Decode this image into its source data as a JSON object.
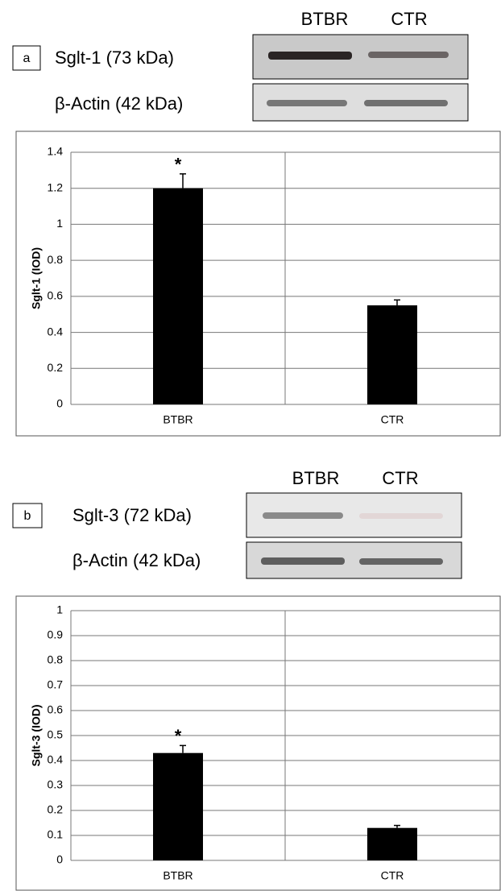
{
  "blots": [
    {
      "panel": "a",
      "lanes": [
        "BTBR",
        "CTR"
      ],
      "rows": [
        "Sglt-1 (73 kDa)",
        "β-Actin (42 kDa)"
      ]
    },
    {
      "panel": "b",
      "lanes": [
        "BTBR",
        "CTR"
      ],
      "rows": [
        "Sglt-3 (72 kDa)",
        "β-Actin (42 kDa)"
      ]
    }
  ],
  "chart_data": [
    {
      "type": "bar",
      "y_label": "Sglt-1 (IOD)",
      "categories": [
        "BTBR",
        "CTR"
      ],
      "values": [
        1.2,
        0.55
      ],
      "errors": [
        0.08,
        0.03
      ],
      "significance_labels": [
        "*",
        null
      ],
      "color": "#000000",
      "ylim": [
        0,
        1.4
      ],
      "yticks": [
        0,
        0.2,
        0.4,
        0.6,
        0.8,
        1,
        1.2,
        1.4
      ],
      "grid": true
    },
    {
      "type": "bar",
      "y_label": "Sglt-3 (IOD)",
      "categories": [
        "BTBR",
        "CTR"
      ],
      "values": [
        0.43,
        0.13
      ],
      "errors": [
        0.03,
        0.01
      ],
      "significance_labels": [
        "*",
        null
      ],
      "color": "#000000",
      "ylim": [
        0,
        1
      ],
      "yticks": [
        0,
        0.1,
        0.2,
        0.3,
        0.4,
        0.5,
        0.6,
        0.7,
        0.8,
        0.9,
        1
      ],
      "grid": true
    }
  ]
}
